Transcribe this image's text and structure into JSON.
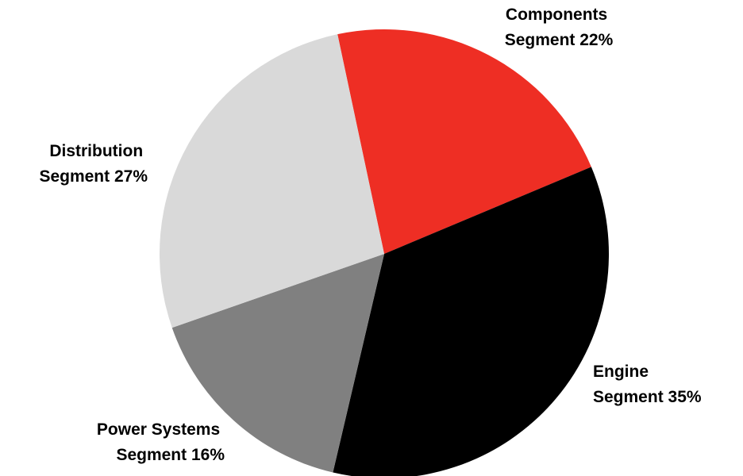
{
  "chart_data": {
    "type": "pie",
    "slices": [
      {
        "line1": "Components",
        "line2": "Segment 22%",
        "value": 22,
        "color": "#ee2e24"
      },
      {
        "line1": "Engine",
        "line2": "Segment 35%",
        "value": 35,
        "color": "#000000"
      },
      {
        "line1": "Power Systems",
        "line2": "Segment 16%",
        "value": 16,
        "color": "#808080"
      },
      {
        "line1": "Distribution",
        "line2": "Segment 27%",
        "value": 27,
        "color": "#d9d9d9"
      }
    ],
    "start_angle_deg": -12,
    "direction": "clockwise"
  }
}
